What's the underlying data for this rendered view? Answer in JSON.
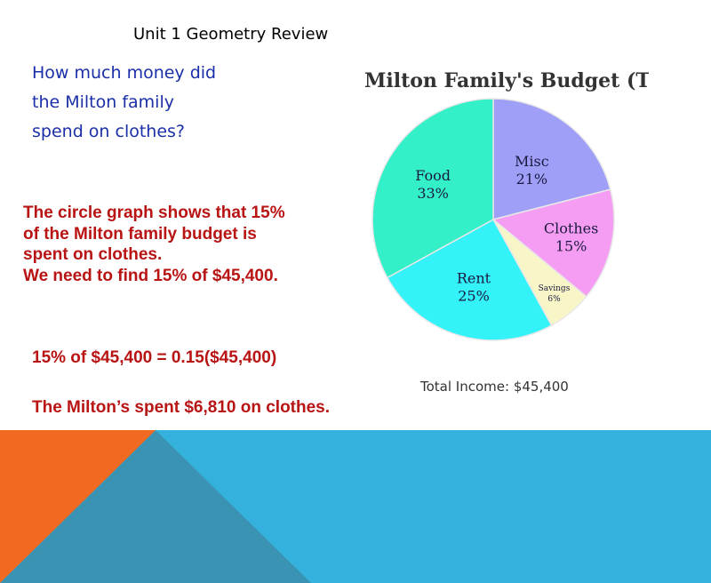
{
  "slide": {
    "title": "Unit 1 Geometry Review",
    "question_lines": [
      "How much money did",
      "the Milton family",
      "spend on clothes?"
    ],
    "explanation_lines": [
      "The circle graph shows that 15%",
      "of the Milton family budget is",
      "spent on clothes.",
      "We need to find 15% of $45,400."
    ],
    "equation": "15% of $45,400 = 0.15($45,400)",
    "conclusion": "The Milton’s spent $6,810 on clothes."
  },
  "colors": {
    "question_text": "#1a2fa8",
    "answer_text": "#b81414",
    "footer_orange": "#f26a21",
    "footer_blue": "#35b1dd",
    "footer_teal": "#3a93b3"
  },
  "chart_data": {
    "type": "pie",
    "title": "Milton Family's Budget (Title)",
    "footnote": "Total Income: $45,400",
    "slices": [
      {
        "name": "Misc",
        "value": 21,
        "label": "21%",
        "color": "#9f9ff7"
      },
      {
        "name": "Clothes",
        "value": 15,
        "label": "15%",
        "color": "#f59df2"
      },
      {
        "name": "Savings",
        "value": 6,
        "label": "6%",
        "color": "#f8f5c6"
      },
      {
        "name": "Rent",
        "value": 25,
        "label": "25%",
        "color": "#33f2f8"
      },
      {
        "name": "Food",
        "value": 33,
        "label": "33%",
        "color": "#33f0c8"
      }
    ]
  }
}
